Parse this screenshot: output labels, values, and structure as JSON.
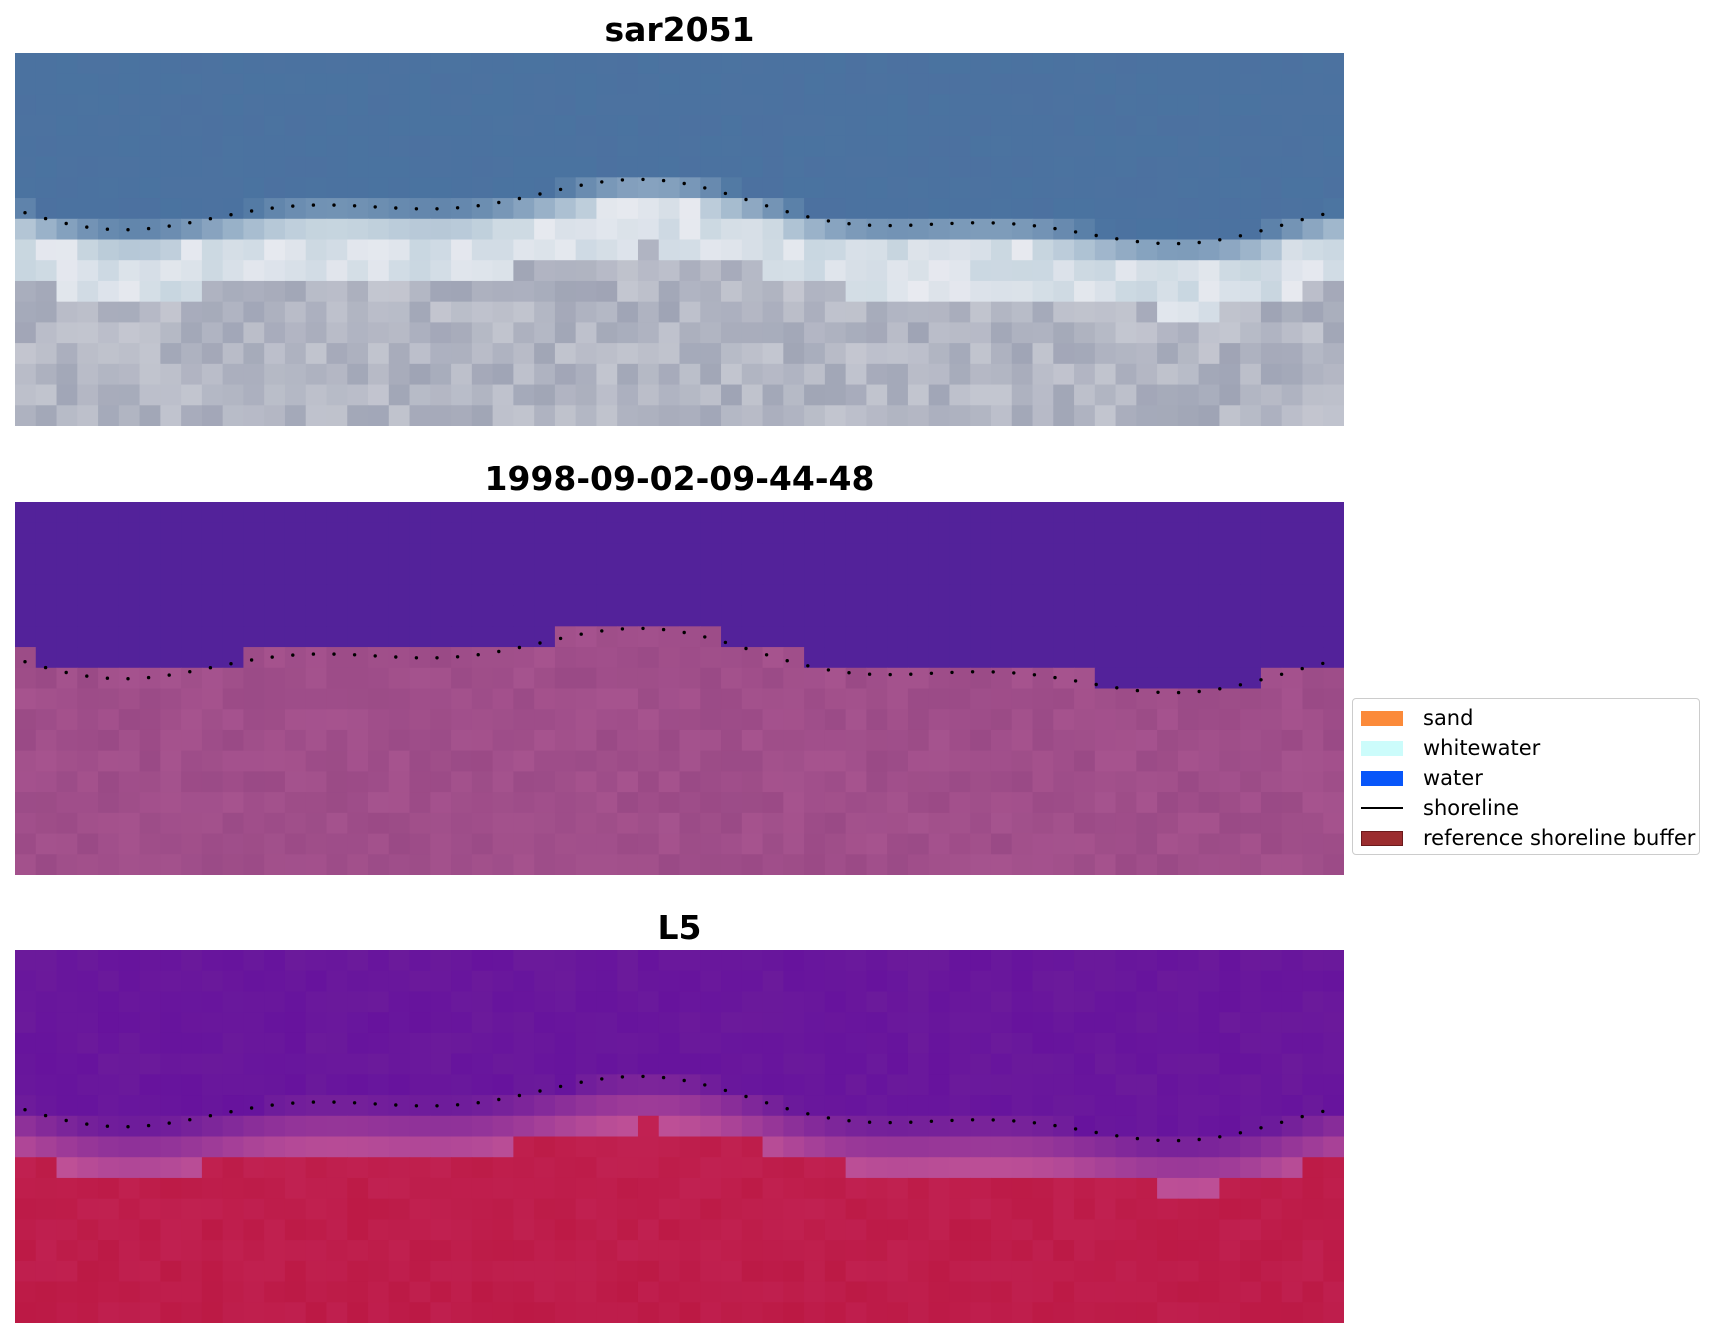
{
  "panels": [
    {
      "title": "sar2051"
    },
    {
      "title": "1998-09-02-09-44-48"
    },
    {
      "title": "L5"
    }
  ],
  "legend": {
    "items": [
      {
        "label": "sand",
        "color": "#fb8a3a",
        "kind": "patch"
      },
      {
        "label": "whitewater",
        "color": "#ccfcfb",
        "kind": "patch"
      },
      {
        "label": "water",
        "color": "#0856f9",
        "kind": "patch"
      },
      {
        "label": "shoreline",
        "color": "#000000",
        "kind": "line"
      },
      {
        "label": "reference shoreline buffer",
        "color": "#9b2d2f",
        "kind": "patch"
      }
    ]
  },
  "colors": {
    "rgb_water": "#4a73a0",
    "rgb_foam": "#c8d6e0",
    "rgb_sand": "#9fa4b5",
    "classified_water": "#53229a",
    "classified_land": "#9a4a86",
    "index_water": "#6b1a9b",
    "index_land": "#c22456"
  }
}
